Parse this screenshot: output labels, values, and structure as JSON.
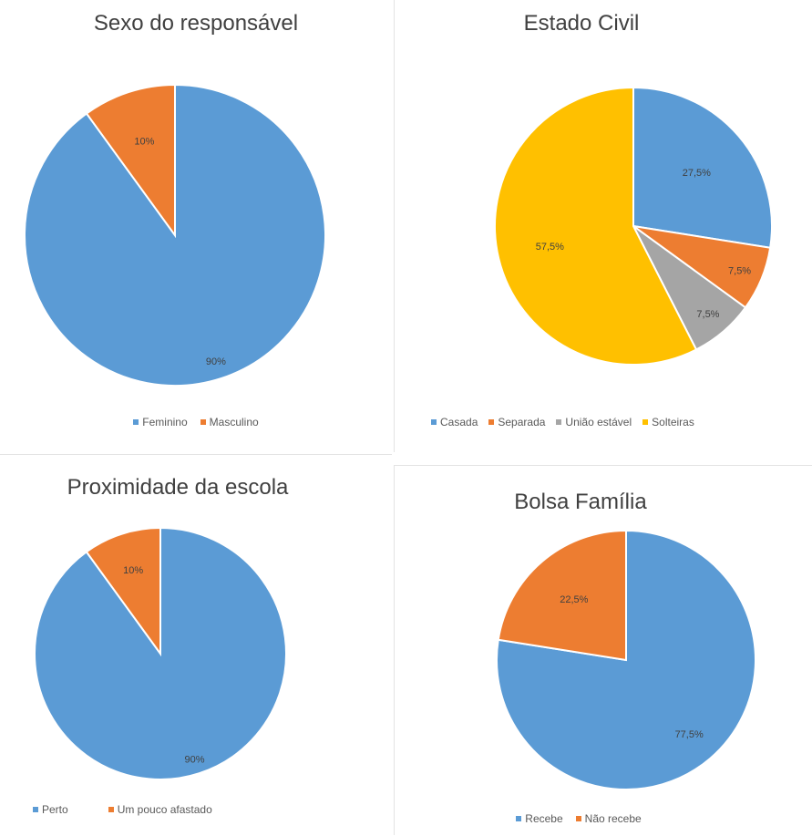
{
  "chart_data": [
    {
      "type": "pie",
      "title": "Sexo do responsável",
      "categories": [
        "Feminino",
        "Masculino"
      ],
      "values": [
        90,
        10
      ],
      "labels": [
        "90%",
        "10%"
      ],
      "colors": [
        "#5B9BD5",
        "#ED7D31"
      ],
      "legend": "bottom"
    },
    {
      "type": "pie",
      "title": "Estado Civil",
      "categories": [
        "Casada",
        "Separada",
        "União estável",
        "Solteiras"
      ],
      "values": [
        27.5,
        7.5,
        7.5,
        57.5
      ],
      "labels": [
        "27,5%",
        "7,5%",
        "7,5%",
        "57,5%"
      ],
      "colors": [
        "#5B9BD5",
        "#ED7D31",
        "#A5A5A5",
        "#FFC000"
      ],
      "legend": "bottom"
    },
    {
      "type": "pie",
      "title": "Proximidade da escola",
      "categories": [
        "Perto",
        "Um pouco  afastado"
      ],
      "values": [
        90,
        10
      ],
      "labels": [
        "90%",
        "10%"
      ],
      "colors": [
        "#5B9BD5",
        "#ED7D31"
      ],
      "legend": "bottom"
    },
    {
      "type": "pie",
      "title": "Bolsa Família",
      "categories": [
        "Recebe",
        "Não recebe"
      ],
      "values": [
        77.5,
        22.5
      ],
      "labels": [
        "77,5%",
        "22,5%"
      ],
      "colors": [
        "#5B9BD5",
        "#ED7D31"
      ],
      "legend": "bottom"
    }
  ]
}
